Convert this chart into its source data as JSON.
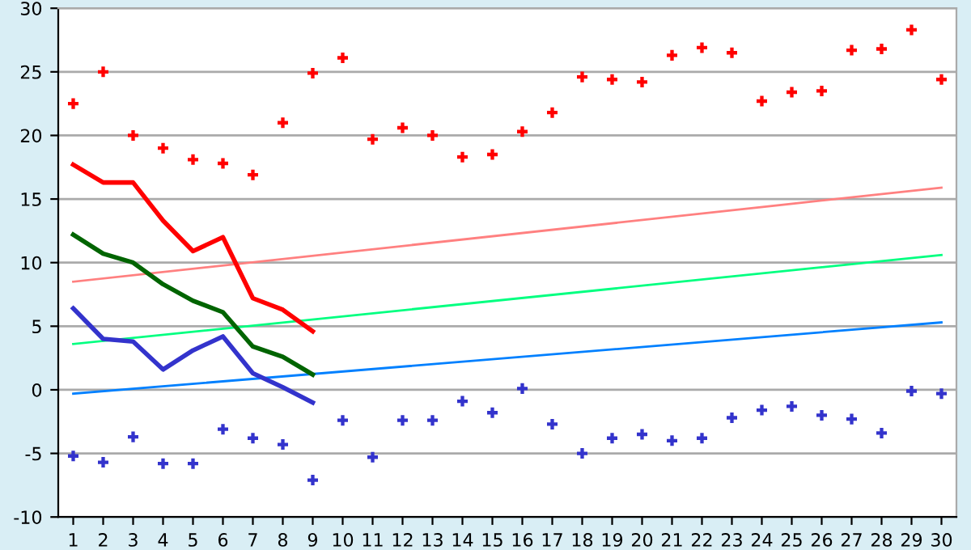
{
  "chart_data": {
    "type": "line",
    "x": [
      1,
      2,
      3,
      4,
      5,
      6,
      7,
      8,
      9,
      10,
      11,
      12,
      13,
      14,
      15,
      16,
      17,
      18,
      19,
      20,
      21,
      22,
      23,
      24,
      25,
      26,
      27,
      28,
      29,
      30
    ],
    "xlim": [
      0.5,
      30.5
    ],
    "xticks": [
      1,
      2,
      3,
      4,
      5,
      6,
      7,
      8,
      9,
      10,
      11,
      12,
      13,
      14,
      15,
      16,
      17,
      18,
      19,
      20,
      21,
      22,
      23,
      24,
      25,
      26,
      27,
      28,
      29,
      30
    ],
    "ylim": [
      -10,
      30
    ],
    "yticks": [
      -10,
      -5,
      0,
      5,
      10,
      15,
      20,
      25,
      30
    ],
    "grid": "y",
    "legend": false,
    "marker": "none",
    "line_style": "solid",
    "series": [
      {
        "type": "scatter",
        "marker": "cross",
        "color": "#ff0000",
        "values": [
          22.5,
          25,
          20,
          19,
          18.1,
          17.8,
          16.9,
          21,
          24.9,
          26.1,
          19.7,
          20.6,
          20,
          18.3,
          18.5,
          20.3,
          21.8,
          24.6,
          24.4,
          24.2,
          26.3,
          26.9,
          26.5,
          22.7,
          23.4,
          23.5,
          26.7,
          26.8,
          28.3,
          24.4
        ]
      },
      {
        "type": "scatter",
        "marker": "cross",
        "color": "#3333cc",
        "values": [
          -5.2,
          -5.7,
          -3.7,
          -5.8,
          -5.8,
          -3.1,
          -3.8,
          -4.3,
          -7.1,
          -2.4,
          -5.3,
          -2.4,
          -2.4,
          -0.9,
          -1.8,
          0.1,
          -2.7,
          -5,
          -3.8,
          -3.5,
          -4,
          -3.8,
          -2.2,
          -1.6,
          -1.3,
          -2,
          -2.3,
          -3.4,
          -0.1,
          -0.3
        ]
      },
      {
        "color": "#ff8080",
        "x": [
          1,
          30
        ],
        "values": [
          8.5,
          15.9
        ]
      },
      {
        "color": "#00ff80",
        "x": [
          1,
          30
        ],
        "values": [
          3.6,
          10.6
        ]
      },
      {
        "color": "#0080ff",
        "x": [
          1,
          30
        ],
        "values": [
          -0.3,
          5.3
        ]
      },
      {
        "color": "#ff0000",
        "x": [
          1,
          2,
          3,
          4,
          5,
          6,
          7,
          8,
          9
        ],
        "values": [
          17.7,
          16.3,
          16.3,
          13.3,
          10.9,
          12,
          7.2,
          6.3,
          4.6
        ]
      },
      {
        "color": "#006400",
        "x": [
          1,
          2,
          3,
          4,
          5,
          6,
          7,
          8,
          9
        ],
        "values": [
          12.2,
          10.7,
          10,
          8.3,
          7,
          6.1,
          3.4,
          2.6,
          1.2
        ]
      },
      {
        "color": "#3333cc",
        "x": [
          1,
          2,
          3,
          4,
          5,
          6,
          7,
          8,
          9
        ],
        "values": [
          6.4,
          4,
          3.8,
          1.6,
          3.1,
          4.2,
          1.3,
          0.2,
          -1
        ]
      }
    ]
  }
}
